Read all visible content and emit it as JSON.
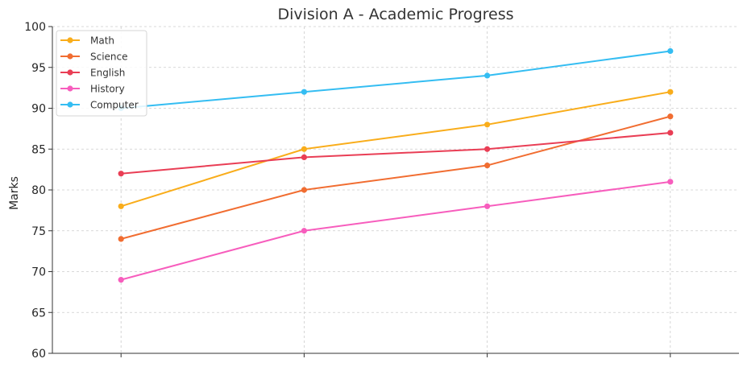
{
  "chart_data": {
    "type": "line",
    "title": "Division A - Academic Progress",
    "xlabel": "",
    "ylabel": "Marks",
    "x": [
      1,
      2,
      3,
      4
    ],
    "xticks_labeled": false,
    "ylim": [
      60,
      100
    ],
    "yticks": [
      60,
      65,
      70,
      75,
      80,
      85,
      90,
      95,
      100
    ],
    "grid": true,
    "legend_position": "top-left",
    "series": [
      {
        "name": "Math",
        "color": "#f9ad1b",
        "values": [
          78,
          85,
          88,
          92
        ]
      },
      {
        "name": "Science",
        "color": "#f16d31",
        "values": [
          74,
          80,
          83,
          89
        ]
      },
      {
        "name": "English",
        "color": "#e93e55",
        "values": [
          82,
          84,
          85,
          87
        ]
      },
      {
        "name": "History",
        "color": "#f75dbd",
        "values": [
          69,
          75,
          78,
          81
        ]
      },
      {
        "name": "Computer",
        "color": "#34bdf2",
        "values": [
          90,
          92,
          94,
          97
        ]
      }
    ]
  }
}
